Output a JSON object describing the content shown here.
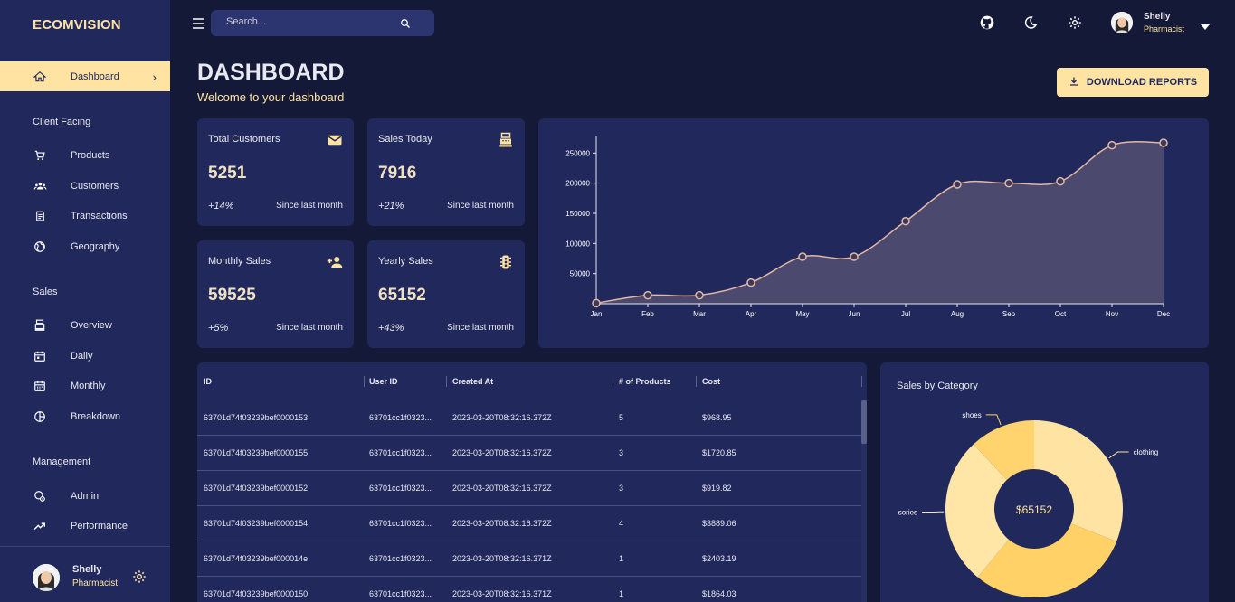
{
  "brand": "ECOMVISION",
  "sidebar": {
    "active": {
      "label": "Dashboard"
    },
    "sections": [
      {
        "title": "Client Facing",
        "items": [
          {
            "label": "Products"
          },
          {
            "label": "Customers"
          },
          {
            "label": "Transactions"
          },
          {
            "label": "Geography"
          }
        ]
      },
      {
        "title": "Sales",
        "items": [
          {
            "label": "Overview"
          },
          {
            "label": "Daily"
          },
          {
            "label": "Monthly"
          },
          {
            "label": "Breakdown"
          }
        ]
      },
      {
        "title": "Management",
        "items": [
          {
            "label": "Admin"
          },
          {
            "label": "Performance"
          }
        ]
      }
    ],
    "user": {
      "name": "Shelly",
      "role": "Pharmacist"
    }
  },
  "topbar": {
    "search_placeholder": "Search...",
    "user": {
      "name": "Shelly",
      "role": "Pharmacist"
    }
  },
  "header": {
    "title": "DASHBOARD",
    "subtitle": "Welcome to your dashboard",
    "download_label": "DOWNLOAD REPORTS"
  },
  "stats": [
    {
      "title": "Total Customers",
      "value": "5251",
      "increase": "+14%",
      "since": "Since last month",
      "icon": "mail-icon"
    },
    {
      "title": "Sales Today",
      "value": "7916",
      "increase": "+21%",
      "since": "Since last month",
      "icon": "point-of-sale-icon"
    },
    {
      "title": "Monthly Sales",
      "value": "59525",
      "increase": "+5%",
      "since": "Since last month",
      "icon": "person-add-icon"
    },
    {
      "title": "Yearly Sales",
      "value": "65152",
      "increase": "+43%",
      "since": "Since last month",
      "icon": "traffic-icon"
    }
  ],
  "chart_data": [
    {
      "type": "area",
      "title": "",
      "xlabel": "",
      "ylabel": "",
      "x": [
        "Jan",
        "Feb",
        "Mar",
        "Apr",
        "May",
        "Jun",
        "Jul",
        "Aug",
        "Sep",
        "Oct",
        "Nov",
        "Dec"
      ],
      "values": [
        1000,
        14000,
        14000,
        35000,
        78000,
        78000,
        137000,
        198000,
        200000,
        203000,
        263000,
        267000
      ],
      "yticks": [
        50000,
        100000,
        150000,
        200000,
        250000
      ],
      "ylim": [
        0,
        270000
      ],
      "grid": false,
      "line_color": "#e3b7a5",
      "fill_color": "#4f4b6f"
    },
    {
      "type": "pie",
      "title": "Sales by Category",
      "center_label": "$65152",
      "labels": [
        "clothing",
        "",
        "sories",
        "shoes"
      ],
      "values": [
        31,
        30,
        27,
        12
      ],
      "colors": [
        "#ffe3a3",
        "#ffd166",
        "#ffe5a6",
        "#ffd36e"
      ]
    }
  ],
  "table": {
    "columns": [
      "ID",
      "User ID",
      "Created At",
      "# of Products",
      "Cost"
    ],
    "rows": [
      [
        "63701d74f03239bef0000153",
        "63701cc1f0323...",
        "2023-03-20T08:32:16.372Z",
        "5",
        "$968.95"
      ],
      [
        "63701d74f03239bef0000155",
        "63701cc1f0323...",
        "2023-03-20T08:32:16.372Z",
        "3",
        "$1720.85"
      ],
      [
        "63701d74f03239bef0000152",
        "63701cc1f0323...",
        "2023-03-20T08:32:16.372Z",
        "3",
        "$919.82"
      ],
      [
        "63701d74f03239bef0000154",
        "63701cc1f0323...",
        "2023-03-20T08:32:16.372Z",
        "4",
        "$3889.06"
      ],
      [
        "63701d74f03239bef000014e",
        "63701cc1f0323...",
        "2023-03-20T08:32:16.371Z",
        "1",
        "$2403.19"
      ],
      [
        "63701d74f03239bef0000150",
        "63701cc1f0323...",
        "2023-03-20T08:32:16.371Z",
        "1",
        "$1864.03"
      ]
    ]
  },
  "colors": {
    "accent": "#ffe3a3",
    "panel": "#21295c",
    "background": "#141937"
  }
}
